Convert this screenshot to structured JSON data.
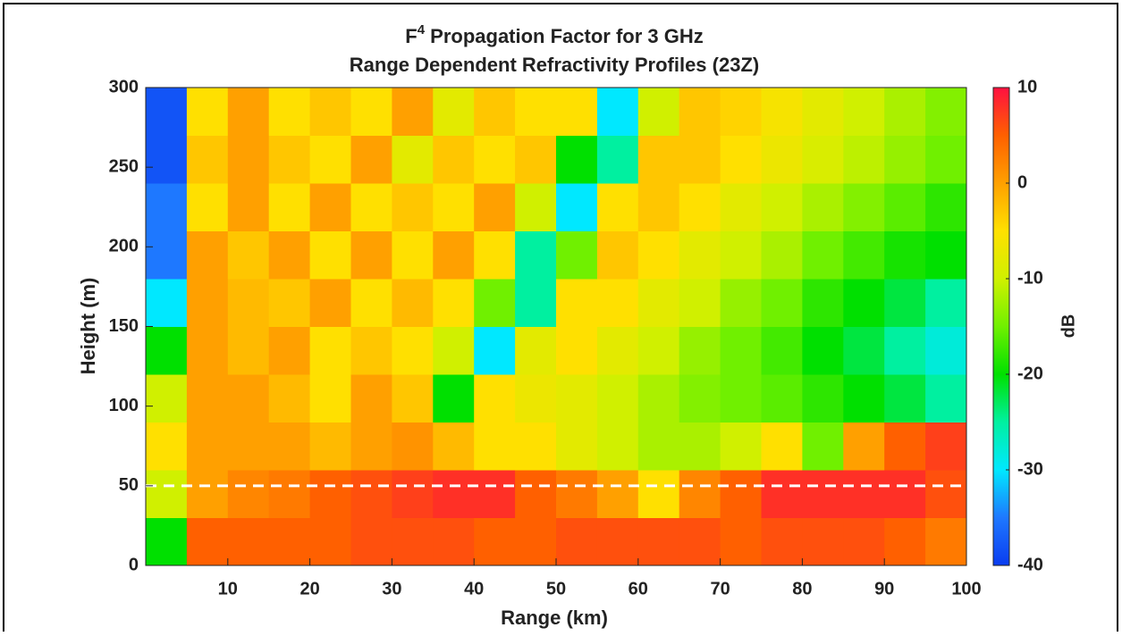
{
  "chart_data": {
    "type": "heatmap",
    "title_base": "F",
    "title_superscript": "4",
    "title_rest": " Propagation Factor for 3 GHz",
    "subtitle": "Range Dependent Refractivity Profiles (23Z)",
    "xlabel": "Range (km)",
    "ylabel": "Height (m)",
    "colorbar_label": "dB",
    "xlim": [
      0,
      100
    ],
    "xticks": [
      10,
      20,
      30,
      40,
      50,
      60,
      70,
      80,
      90,
      100
    ],
    "ylim": [
      0,
      300
    ],
    "yticks": [
      0,
      50,
      100,
      150,
      200,
      250,
      300
    ],
    "clim": [
      -40,
      10
    ],
    "cticks": [
      -40,
      -30,
      -20,
      -10,
      0,
      10
    ],
    "colormap": [
      "#0a3cf0",
      "#1e78ff",
      "#00e8ff",
      "#00f0a0",
      "#00e000",
      "#70f000",
      "#d0f000",
      "#ffe000",
      "#ffa000",
      "#ff6000",
      "#ff1040"
    ],
    "x_bins": [
      0,
      5,
      10,
      15,
      20,
      25,
      30,
      35,
      40,
      45,
      50,
      55,
      60,
      65,
      70,
      75,
      80,
      85,
      90,
      95,
      100
    ],
    "y_bins": [
      0,
      30,
      60,
      90,
      120,
      150,
      180,
      210,
      240,
      270,
      300
    ],
    "z": [
      [
        -20,
        5,
        5,
        5,
        5,
        6,
        6,
        6,
        5,
        5,
        6,
        6,
        6,
        6,
        5,
        6,
        6,
        6,
        5,
        3
      ],
      [
        -10,
        0,
        2,
        3,
        5,
        6,
        7,
        8,
        8,
        5,
        3,
        0,
        -5,
        2,
        5,
        8,
        8,
        8,
        8,
        6
      ],
      [
        -5,
        0,
        0,
        0,
        -2,
        0,
        1,
        -2,
        -5,
        -5,
        -8,
        -10,
        -12,
        -12,
        -10,
        -5,
        -15,
        0,
        5,
        7
      ],
      [
        -10,
        0,
        0,
        -2,
        -5,
        0,
        -3,
        -20,
        -5,
        -7,
        -8,
        -10,
        -12,
        -14,
        -15,
        -16,
        -18,
        -20,
        -22,
        -25
      ],
      [
        -20,
        0,
        -2,
        0,
        -5,
        -3,
        -5,
        -10,
        -30,
        -8,
        -5,
        -8,
        -10,
        -13,
        -15,
        -17,
        -20,
        -22,
        -25,
        -28
      ],
      [
        -30,
        0,
        -2,
        -3,
        0,
        -5,
        -2,
        -5,
        -15,
        -25,
        -5,
        -5,
        -8,
        -10,
        -13,
        -15,
        -18,
        -20,
        -22,
        -25
      ],
      [
        -35,
        0,
        -3,
        0,
        -5,
        0,
        -5,
        0,
        -5,
        -25,
        -15,
        -3,
        -5,
        -8,
        -10,
        -12,
        -15,
        -17,
        -19,
        -20
      ],
      [
        -35,
        -5,
        0,
        -5,
        0,
        -5,
        -3,
        -5,
        0,
        -10,
        -30,
        -5,
        -3,
        -5,
        -8,
        -10,
        -12,
        -14,
        -16,
        -18
      ],
      [
        -38,
        -3,
        0,
        -3,
        -5,
        0,
        -8,
        -3,
        -5,
        -3,
        -20,
        -25,
        -3,
        -3,
        -5,
        -7,
        -9,
        -11,
        -13,
        -15
      ],
      [
        -38,
        -5,
        0,
        -5,
        -3,
        -5,
        0,
        -8,
        -3,
        -5,
        -5,
        -30,
        -10,
        -3,
        -4,
        -6,
        -8,
        -10,
        -12,
        -14
      ]
    ],
    "reference_line": {
      "y": 50,
      "color": "#ffffff"
    }
  }
}
